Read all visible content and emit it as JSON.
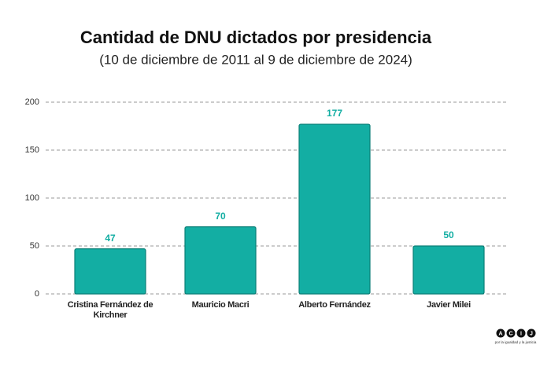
{
  "chart_data": {
    "type": "bar",
    "title": "Cantidad de DNU dictados por presidencia",
    "subtitle": "(10 de diciembre de 2011 al 9 de diciembre de 2024)",
    "categories": [
      "Cristina Fernández de Kirchner",
      "Mauricio Macri",
      "Alberto Fernández",
      "Javier Milei"
    ],
    "values": [
      47,
      70,
      177,
      50
    ],
    "color": "#13aea3",
    "ylim": [
      0,
      200
    ],
    "yticks": [
      0,
      50,
      100,
      150,
      200
    ],
    "grid": true
  },
  "logo": {
    "letters": [
      "A",
      "C",
      "I",
      "J"
    ],
    "tagline": "por la igualdad y la justicia"
  }
}
